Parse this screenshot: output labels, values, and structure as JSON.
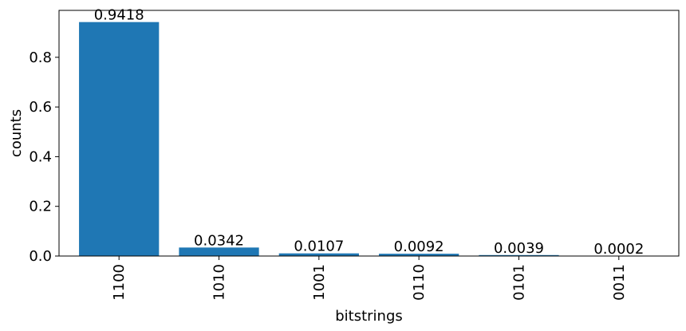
{
  "chart_data": {
    "type": "bar",
    "categories": [
      "1100",
      "1010",
      "1001",
      "0110",
      "0101",
      "0011"
    ],
    "values": [
      0.9418,
      0.0342,
      0.0107,
      0.0092,
      0.0039,
      0.0002
    ],
    "data_labels": [
      "0.9418",
      "0.0342",
      "0.0107",
      "0.0092",
      "0.0039",
      "0.0002"
    ],
    "xlabel": "bitstrings",
    "ylabel": "counts",
    "ylim": [
      0,
      0.9418
    ],
    "yticks": [
      0.0,
      0.2,
      0.4,
      0.6,
      0.8
    ],
    "ytick_labels": [
      "0.0",
      "0.2",
      "0.4",
      "0.6",
      "0.8"
    ],
    "grid": false,
    "bar_color": "#1f77b4"
  }
}
